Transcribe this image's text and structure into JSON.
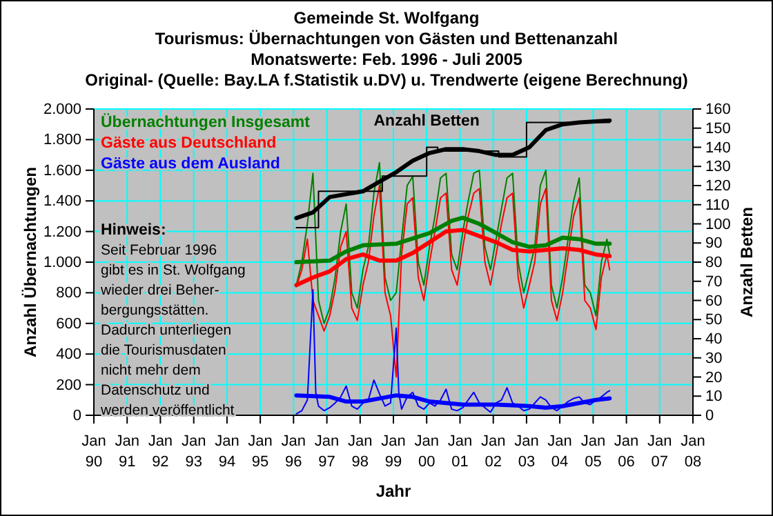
{
  "chart_data": {
    "type": "line",
    "title": "Gemeinde St. Wolfgang",
    "subtitle": "Tourismus: Übernachtungen von Gästen und Bettenanzahl\nMonatswerte: Feb. 1996 - Juli 2005\nOriginal- (Quelle: Bay.LA f.Statistik u.DV) u. Trendwerte (eigene Berechnung)",
    "xlabel": "Jahr",
    "ylabel": "Anzahl Übernachtungen",
    "y2label": "Anzahl Betten",
    "annotations": [
      "Hinweis:",
      "Seit Februar 1996\ngibt es in St. Wolfgang\nwieder drei Beher-\nbergungsstätten.\nDadurch unterliegen\ndie Tourismusdaten\nnicht mehr dem\nDatenschutz und\nwerden veröffentlicht"
    ],
    "xlim": [
      "1990-01",
      "2008-01"
    ],
    "xticks": [
      {
        "value": "1990-01",
        "label": "Jan 90"
      },
      {
        "value": "1991-01",
        "label": "Jan 91"
      },
      {
        "value": "1992-01",
        "label": "Jan 92"
      },
      {
        "value": "1993-01",
        "label": "Jan 93"
      },
      {
        "value": "1994-01",
        "label": "Jan 94"
      },
      {
        "value": "1995-01",
        "label": "Jan 95"
      },
      {
        "value": "1996-01",
        "label": "Jan 96"
      },
      {
        "value": "1997-01",
        "label": "Jan 97"
      },
      {
        "value": "1998-01",
        "label": "Jan 98"
      },
      {
        "value": "1999-01",
        "label": "Jan 99"
      },
      {
        "value": "2000-01",
        "label": "Jan 00"
      },
      {
        "value": "2001-01",
        "label": "Jan 01"
      },
      {
        "value": "2002-01",
        "label": "Jan 02"
      },
      {
        "value": "2003-01",
        "label": "Jan 03"
      },
      {
        "value": "2004-01",
        "label": "Jan 04"
      },
      {
        "value": "2005-01",
        "label": "Jan 05"
      },
      {
        "value": "2006-01",
        "label": "Jan 06"
      },
      {
        "value": "2007-01",
        "label": "Jan 07"
      },
      {
        "value": "2008-01",
        "label": "Jan 08"
      }
    ],
    "ylim": [
      0,
      2000
    ],
    "yticks": [
      0,
      200,
      400,
      600,
      800,
      {
        "value": 1000,
        "label": "1.000"
      },
      {
        "value": 1200,
        "label": "1.200"
      },
      {
        "value": 1400,
        "label": "1.400"
      },
      {
        "value": 1600,
        "label": "1.600"
      },
      {
        "value": 1800,
        "label": "1.800"
      },
      {
        "value": 2000,
        "label": "2.000"
      }
    ],
    "y2lim": [
      0,
      160
    ],
    "y2ticks": [
      0,
      10,
      20,
      30,
      40,
      50,
      60,
      70,
      80,
      90,
      100,
      110,
      120,
      130,
      140,
      150,
      160
    ],
    "grid": true,
    "legend": "top left",
    "series": [
      {
        "name": "Übernachtungen Insgesamt",
        "color": "#008000",
        "x": [
          "1996-02",
          "1996-04",
          "1996-06",
          "1996-08",
          "1996-10",
          "1996-12",
          "1997-02",
          "1997-04",
          "1997-06",
          "1997-08",
          "1997-10",
          "1997-12",
          "1998-02",
          "1998-04",
          "1998-06",
          "1998-08",
          "1998-10",
          "1998-12",
          "1999-02",
          "1999-04",
          "1999-06",
          "1999-08",
          "1999-10",
          "1999-12",
          "2000-02",
          "2000-04",
          "2000-06",
          "2000-08",
          "2000-10",
          "2000-12",
          "2001-02",
          "2001-04",
          "2001-06",
          "2001-08",
          "2001-10",
          "2001-12",
          "2002-02",
          "2002-04",
          "2002-06",
          "2002-08",
          "2002-10",
          "2002-12",
          "2003-02",
          "2003-04",
          "2003-06",
          "2003-08",
          "2003-10",
          "2003-12",
          "2004-02",
          "2004-04",
          "2004-06",
          "2004-08",
          "2004-10",
          "2004-12",
          "2005-02",
          "2005-04",
          "2005-06",
          "2005-07"
        ],
        "values": [
          850,
          1000,
          1250,
          1580,
          750,
          600,
          700,
          900,
          1200,
          1380,
          800,
          700,
          950,
          1100,
          1450,
          1650,
          900,
          750,
          800,
          1150,
          1500,
          1560,
          1000,
          850,
          1100,
          1300,
          1550,
          1580,
          1050,
          950,
          1200,
          1400,
          1580,
          1600,
          1100,
          950,
          1150,
          1350,
          1550,
          1580,
          1000,
          800,
          950,
          1100,
          1500,
          1600,
          850,
          700,
          900,
          1150,
          1400,
          1550,
          850,
          800,
          650,
          1000,
          1150,
          1050
        ]
      },
      {
        "name": "Gäste aus Deutschland",
        "color": "#ff0000",
        "x": [
          "1996-02",
          "1996-04",
          "1996-06",
          "1996-08",
          "1996-10",
          "1996-12",
          "1997-02",
          "1997-04",
          "1997-06",
          "1997-08",
          "1997-10",
          "1997-12",
          "1998-02",
          "1998-04",
          "1998-06",
          "1998-08",
          "1998-10",
          "1998-12",
          "1999-02",
          "1999-04",
          "1999-06",
          "1999-08",
          "1999-10",
          "1999-12",
          "2000-02",
          "2000-04",
          "2000-06",
          "2000-08",
          "2000-10",
          "2000-12",
          "2001-02",
          "2001-04",
          "2001-06",
          "2001-08",
          "2001-10",
          "2001-12",
          "2002-02",
          "2002-04",
          "2002-06",
          "2002-08",
          "2002-10",
          "2002-12",
          "2003-02",
          "2003-04",
          "2003-06",
          "2003-08",
          "2003-10",
          "2003-12",
          "2004-02",
          "2004-04",
          "2004-06",
          "2004-08",
          "2004-10",
          "2004-12",
          "2005-02",
          "2005-04",
          "2005-06",
          "2005-07"
        ],
        "values": [
          840,
          950,
          1150,
          750,
          650,
          550,
          650,
          820,
          1100,
          1200,
          700,
          620,
          850,
          1000,
          1300,
          1500,
          800,
          650,
          250,
          1050,
          1380,
          1420,
          900,
          750,
          1000,
          1200,
          1420,
          1450,
          950,
          850,
          1100,
          1300,
          1450,
          1480,
          1000,
          850,
          1050,
          1250,
          1420,
          1450,
          900,
          700,
          850,
          1000,
          1380,
          1480,
          750,
          620,
          800,
          1050,
          1300,
          1420,
          750,
          700,
          560,
          900,
          1050,
          950
        ]
      },
      {
        "name": "Gäste aus dem Ausland",
        "color": "#0000ff",
        "x": [
          "1996-02",
          "1996-04",
          "1996-06",
          "1996-08",
          "1996-09",
          "1996-10",
          "1996-12",
          "1997-02",
          "1997-04",
          "1997-06",
          "1997-08",
          "1997-10",
          "1997-12",
          "1998-02",
          "1998-04",
          "1998-06",
          "1998-08",
          "1998-10",
          "1998-12",
          "1999-02",
          "1999-03",
          "1999-04",
          "1999-06",
          "1999-08",
          "1999-10",
          "1999-12",
          "2000-02",
          "2000-04",
          "2000-06",
          "2000-08",
          "2000-10",
          "2000-12",
          "2001-02",
          "2001-04",
          "2001-06",
          "2001-08",
          "2001-10",
          "2001-12",
          "2002-02",
          "2002-04",
          "2002-06",
          "2002-08",
          "2002-10",
          "2002-12",
          "2003-02",
          "2003-04",
          "2003-06",
          "2003-08",
          "2003-10",
          "2003-12",
          "2004-02",
          "2004-04",
          "2004-06",
          "2004-08",
          "2004-10",
          "2004-12",
          "2005-02",
          "2005-04",
          "2005-06",
          "2005-07"
        ],
        "values": [
          10,
          30,
          100,
          820,
          150,
          60,
          30,
          50,
          80,
          120,
          190,
          60,
          40,
          80,
          100,
          230,
          140,
          60,
          80,
          570,
          150,
          40,
          120,
          150,
          60,
          40,
          80,
          60,
          100,
          170,
          40,
          30,
          50,
          100,
          150,
          80,
          50,
          20,
          80,
          100,
          180,
          80,
          60,
          30,
          40,
          80,
          120,
          100,
          50,
          30,
          60,
          90,
          110,
          120,
          80,
          70,
          100,
          120,
          150,
          160
        ]
      },
      {
        "name": "Anzahl Betten",
        "type": "step",
        "axis": "y2",
        "color": "#000000",
        "x": [
          "1996-02",
          "1996-10",
          "1998-09",
          "2000-01",
          "2000-05",
          "2002-03",
          "2003-01",
          "2005-07"
        ],
        "values": [
          98,
          117,
          125,
          140,
          138,
          135,
          153,
          153
        ]
      },
      {
        "color": "#008000",
        "x": [
          "1996-02",
          "1997-02",
          "1997-08",
          "1998-02",
          "1999-02",
          "2000-02",
          "2000-10",
          "2001-02",
          "2001-08",
          "2002-02",
          "2002-08",
          "2003-02",
          "2003-08",
          "2004-02",
          "2004-08",
          "2005-02",
          "2005-07"
        ],
        "values": [
          1000,
          1010,
          1070,
          1110,
          1120,
          1190,
          1270,
          1290,
          1250,
          1190,
          1130,
          1100,
          1110,
          1160,
          1150,
          1120,
          1120
        ]
      },
      {
        "color": "#ff0000",
        "x": [
          "1996-02",
          "1996-08",
          "1997-02",
          "1997-08",
          "1998-02",
          "1998-08",
          "1999-02",
          "1999-08",
          "2000-02",
          "2000-08",
          "2001-02",
          "2001-08",
          "2002-02",
          "2002-08",
          "2003-02",
          "2003-08",
          "2004-02",
          "2004-08",
          "2005-02",
          "2005-07"
        ],
        "values": [
          850,
          900,
          940,
          1020,
          1050,
          1010,
          1010,
          1060,
          1130,
          1200,
          1210,
          1170,
          1130,
          1080,
          1070,
          1080,
          1090,
          1080,
          1050,
          1040
        ]
      },
      {
        "color": "#0000ff",
        "x": [
          "1996-02",
          "1997-02",
          "1997-08",
          "1998-02",
          "1998-08",
          "1999-02",
          "1999-08",
          "2000-02",
          "2001-02",
          "2002-02",
          "2003-02",
          "2003-08",
          "2004-02",
          "2004-08",
          "2005-02",
          "2005-07"
        ],
        "values": [
          130,
          120,
          90,
          90,
          110,
          130,
          120,
          90,
          70,
          70,
          60,
          50,
          60,
          80,
          100,
          110
        ]
      },
      {
        "axis": "y2",
        "color": "#000000",
        "x": [
          "1996-02",
          "1996-08",
          "1997-02",
          "1998-02",
          "1998-08",
          "1999-02",
          "1999-08",
          "2000-02",
          "2000-08",
          "2001-02",
          "2001-08",
          "2002-02",
          "2002-08",
          "2003-02",
          "2003-08",
          "2004-02",
          "2004-08",
          "2005-07"
        ],
        "values": [
          103,
          106,
          114,
          117,
          122,
          127,
          133,
          137,
          139,
          139,
          138,
          136,
          136,
          140,
          149,
          152,
          153,
          154
        ]
      }
    ]
  }
}
